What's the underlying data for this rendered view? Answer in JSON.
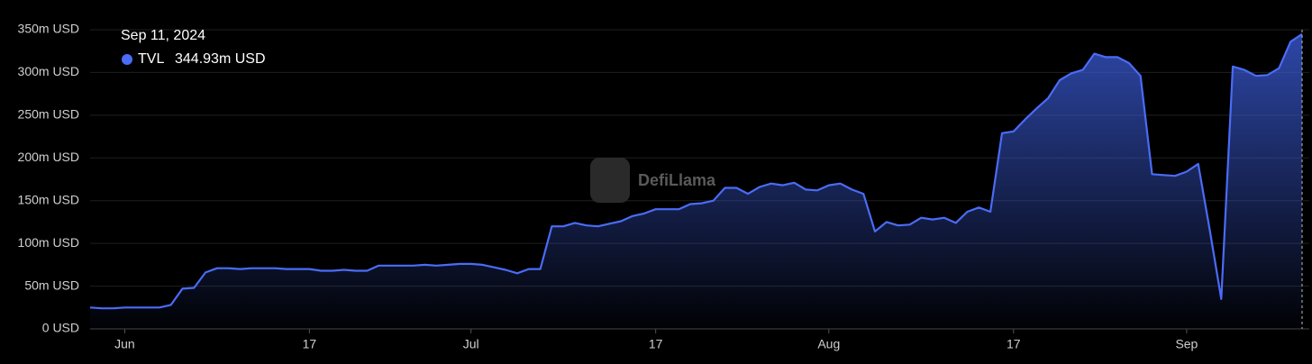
{
  "chart_data": {
    "type": "area",
    "watermark": "DefiLlama",
    "tooltip": {
      "date": "Sep 11, 2024",
      "series": "TVL",
      "value_label": "344.93m USD"
    },
    "x": [
      "2024-05-29",
      "2024-05-30",
      "2024-05-31",
      "2024-06-01",
      "2024-06-02",
      "2024-06-03",
      "2024-06-04",
      "2024-06-05",
      "2024-06-06",
      "2024-06-07",
      "2024-06-08",
      "2024-06-09",
      "2024-06-10",
      "2024-06-11",
      "2024-06-12",
      "2024-06-13",
      "2024-06-14",
      "2024-06-15",
      "2024-06-16",
      "2024-06-17",
      "2024-06-18",
      "2024-06-19",
      "2024-06-20",
      "2024-06-21",
      "2024-06-22",
      "2024-06-23",
      "2024-06-24",
      "2024-06-25",
      "2024-06-26",
      "2024-06-27",
      "2024-06-28",
      "2024-06-29",
      "2024-06-30",
      "2024-07-01",
      "2024-07-02",
      "2024-07-03",
      "2024-07-04",
      "2024-07-05",
      "2024-07-06",
      "2024-07-07",
      "2024-07-08",
      "2024-07-09",
      "2024-07-10",
      "2024-07-11",
      "2024-07-12",
      "2024-07-13",
      "2024-07-14",
      "2024-07-15",
      "2024-07-16",
      "2024-07-17",
      "2024-07-18",
      "2024-07-19",
      "2024-07-20",
      "2024-07-21",
      "2024-07-22",
      "2024-07-23",
      "2024-07-24",
      "2024-07-25",
      "2024-07-26",
      "2024-07-27",
      "2024-07-28",
      "2024-07-29",
      "2024-07-30",
      "2024-07-31",
      "2024-08-01",
      "2024-08-02",
      "2024-08-03",
      "2024-08-04",
      "2024-08-05",
      "2024-08-06",
      "2024-08-07",
      "2024-08-08",
      "2024-08-09",
      "2024-08-10",
      "2024-08-11",
      "2024-08-12",
      "2024-08-13",
      "2024-08-14",
      "2024-08-15",
      "2024-08-16",
      "2024-08-17",
      "2024-08-18",
      "2024-08-19",
      "2024-08-20",
      "2024-08-21",
      "2024-08-22",
      "2024-08-23",
      "2024-08-24",
      "2024-08-25",
      "2024-08-26",
      "2024-08-27",
      "2024-08-28",
      "2024-08-29",
      "2024-08-30",
      "2024-08-31",
      "2024-09-01",
      "2024-09-02",
      "2024-09-03",
      "2024-09-04",
      "2024-09-05",
      "2024-09-06",
      "2024-09-07",
      "2024-09-08",
      "2024-09-09",
      "2024-09-10",
      "2024-09-11"
    ],
    "series": [
      {
        "name": "TVL",
        "color": "#4a6cf7",
        "values": [
          25,
          24,
          24,
          25,
          25,
          25,
          25,
          28,
          47,
          48,
          66,
          71,
          71,
          70,
          71,
          71,
          71,
          70,
          70,
          70,
          68,
          68,
          69,
          68,
          68,
          74,
          74,
          74,
          74,
          75,
          74,
          75,
          76,
          76,
          75,
          72,
          69,
          65,
          70,
          70,
          120,
          120,
          124,
          121,
          120,
          123,
          126,
          132,
          135,
          140,
          140,
          140,
          146,
          147,
          150,
          165,
          165,
          158,
          166,
          170,
          168,
          171,
          163,
          162,
          168,
          170,
          163,
          158,
          114,
          125,
          121,
          122,
          130,
          128,
          130,
          124,
          137,
          142,
          137,
          229,
          231,
          245,
          258,
          270,
          291,
          299,
          303,
          322,
          318,
          318,
          311,
          296,
          181,
          180,
          179,
          184,
          193,
          116,
          35,
          307,
          303,
          296,
          297,
          305,
          336,
          344.93
        ]
      }
    ],
    "xlim": [
      "2024-05-29",
      "2024-09-11"
    ],
    "xticks": [
      {
        "value": "2024-06-01",
        "label": "Jun"
      },
      {
        "value": "2024-06-17",
        "label": "17"
      },
      {
        "value": "2024-07-01",
        "label": "Jul"
      },
      {
        "value": "2024-07-17",
        "label": "17"
      },
      {
        "value": "2024-08-01",
        "label": "Aug"
      },
      {
        "value": "2024-08-17",
        "label": "17"
      },
      {
        "value": "2024-09-01",
        "label": "Sep"
      }
    ],
    "ylim": [
      0,
      350
    ],
    "yticks": [
      {
        "value": 0,
        "label": "0 USD"
      },
      {
        "value": 50,
        "label": "50m USD"
      },
      {
        "value": 100,
        "label": "100m USD"
      },
      {
        "value": 150,
        "label": "150m USD"
      },
      {
        "value": 200,
        "label": "200m USD"
      },
      {
        "value": 250,
        "label": "250m USD"
      },
      {
        "value": 300,
        "label": "300m USD"
      },
      {
        "value": 350,
        "label": "350m USD"
      }
    ],
    "grid": true
  }
}
